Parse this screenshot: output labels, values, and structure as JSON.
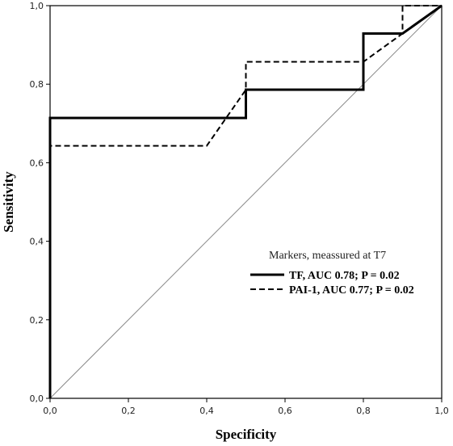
{
  "chart_data": {
    "type": "line",
    "title": "",
    "xlabel": "Specificity",
    "ylabel": "Sensitivity",
    "xlim": [
      0,
      1
    ],
    "ylim": [
      0,
      1
    ],
    "x_ticks": [
      "0,0",
      "0,2",
      "0,4",
      "0,6",
      "0,8",
      "1,0"
    ],
    "y_ticks": [
      "0,0",
      "0,2",
      "0,4",
      "0,6",
      "0,8",
      "1,0"
    ],
    "grid": false,
    "legend": {
      "placement": "lower-right",
      "title": "Markers, meassured at T7"
    },
    "series": [
      {
        "name": "TF, AUC 0.78; P = 0.02",
        "style": "solid",
        "color": "#000000",
        "points": [
          [
            0,
            0
          ],
          [
            0,
            0.714
          ],
          [
            0.5,
            0.714
          ],
          [
            0.5,
            0.786
          ],
          [
            0.8,
            0.786
          ],
          [
            0.8,
            0.929
          ],
          [
            0.9,
            0.929
          ],
          [
            1,
            1
          ]
        ]
      },
      {
        "name": "PAI-1, AUC 0.77; P = 0.02",
        "style": "dashed",
        "color": "#000000",
        "points": [
          [
            0,
            0
          ],
          [
            0,
            0.643
          ],
          [
            0.4,
            0.643
          ],
          [
            0.5,
            0.786
          ],
          [
            0.5,
            0.857
          ],
          [
            0.8,
            0.857
          ],
          [
            0.9,
            0.929
          ],
          [
            0.9,
            1
          ],
          [
            1,
            1
          ]
        ]
      }
    ],
    "reference_line": {
      "points": [
        [
          0,
          0
        ],
        [
          1,
          1
        ]
      ],
      "color": "#888888"
    }
  }
}
